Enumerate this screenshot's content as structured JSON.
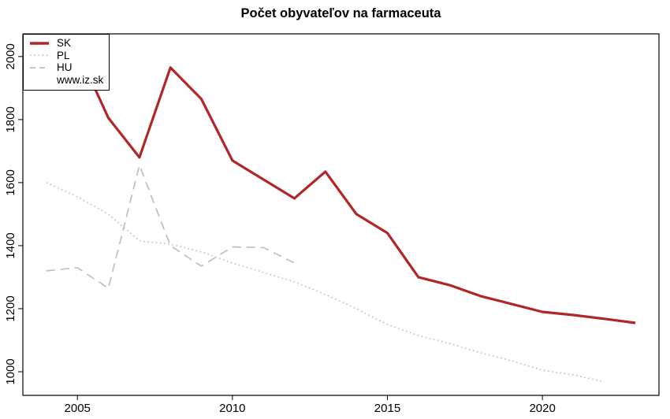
{
  "chart_data": {
    "type": "line",
    "title": "Počet obyvateľov na farmaceuta",
    "xlabel": "",
    "ylabel": "",
    "xlim": [
      2003.24,
      2023.76
    ],
    "ylim": [
      925,
      2072
    ],
    "x_ticks": [
      2005,
      2010,
      2015,
      2020
    ],
    "y_ticks": [
      1000,
      1200,
      1400,
      1600,
      1800,
      2000
    ],
    "grid": false,
    "legend_position": "topleft",
    "series": [
      {
        "name": "SK",
        "color": "#B22626",
        "style": "solid",
        "x": [
          2005,
          2006,
          2007,
          2008,
          2009,
          2010,
          2011,
          2012,
          2013,
          2014,
          2015,
          2016,
          2017,
          2018,
          2019,
          2020,
          2021,
          2022,
          2023
        ],
        "values": [
          2020,
          1805,
          1680,
          1965,
          1865,
          1670,
          1610,
          1550,
          1635,
          1500,
          1440,
          1300,
          1275,
          1240,
          1215,
          1190,
          1180,
          1168,
          1155
        ]
      },
      {
        "name": "PL",
        "color": "#BAC0C9",
        "style": "dotted",
        "x": [
          2004,
          2005,
          2006,
          2007,
          2008,
          2009,
          2010,
          2011,
          2012,
          2013,
          2014,
          2015,
          2016,
          2017,
          2018,
          2019,
          2020,
          2021,
          2022
        ],
        "values": [
          1600,
          1555,
          1500,
          1415,
          1405,
          1380,
          1345,
          1315,
          1285,
          1245,
          1200,
          1150,
          1115,
          1090,
          1060,
          1035,
          1005,
          990,
          968
        ]
      },
      {
        "name": "HU",
        "color": "#BAC0C9",
        "style": "dashed",
        "x": [
          2004,
          2005,
          2006,
          2007,
          2008,
          2009,
          2010,
          2011,
          2012
        ],
        "values": [
          1320,
          1330,
          1265,
          1655,
          1400,
          1335,
          1396,
          1394,
          1345
        ]
      }
    ]
  },
  "legend": {
    "items": [
      {
        "label": "SK"
      },
      {
        "label": "PL"
      },
      {
        "label": "HU"
      },
      {
        "label": "www.iz.sk"
      }
    ]
  },
  "colors": {
    "sk_line": "#B22626",
    "neighbor_lines": "#BAC0C9",
    "axis": "#000000",
    "background": "#FFFFFF"
  }
}
